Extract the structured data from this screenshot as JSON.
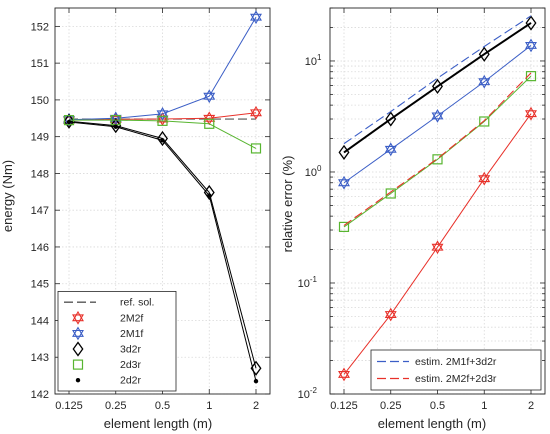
{
  "chart_data": [
    {
      "type": "line",
      "xscale": "log2",
      "x": [
        0.125,
        0.25,
        0.5,
        1,
        2
      ],
      "xticks": [
        "0.125",
        "0.25",
        "0.5",
        "1",
        "2"
      ],
      "xlabel": "element length (m)",
      "ylabel": "energy (Nm)",
      "ylim": [
        142,
        152.5
      ],
      "yticks": [
        "142",
        "143",
        "144",
        "145",
        "146",
        "147",
        "148",
        "149",
        "150",
        "151",
        "152"
      ],
      "grid": true,
      "legend_position": "bottom-left",
      "series": [
        {
          "name": "ref. sol.",
          "values": [
            149.48,
            149.48,
            149.48,
            149.48,
            149.48
          ],
          "color": "#555555",
          "style": "dashed",
          "marker": "none"
        },
        {
          "name": "2M2f",
          "values": [
            149.45,
            149.47,
            149.48,
            149.5,
            149.65
          ],
          "color": "#e8312a",
          "marker": "hexagram"
        },
        {
          "name": "2M1f",
          "values": [
            149.46,
            149.5,
            149.62,
            150.1,
            152.25
          ],
          "color": "#3b5ec6",
          "marker": "hexagram"
        },
        {
          "name": "3d2r",
          "values": [
            149.42,
            149.3,
            148.95,
            147.48,
            142.7
          ],
          "color": "#000000",
          "marker": "diamond"
        },
        {
          "name": "2d3r",
          "values": [
            149.45,
            149.45,
            149.43,
            149.35,
            148.68
          ],
          "color": "#58b530",
          "marker": "square"
        },
        {
          "name": "2d2r",
          "values": [
            149.4,
            149.27,
            148.9,
            147.4,
            142.35
          ],
          "color": "#000000",
          "marker": "dot"
        }
      ]
    },
    {
      "type": "line",
      "xscale": "log2",
      "yscale": "log",
      "x": [
        0.125,
        0.25,
        0.5,
        1,
        2
      ],
      "xticks": [
        "0.125",
        "0.25",
        "0.5",
        "1",
        "2"
      ],
      "xlabel": "element length (m)",
      "ylabel": "relative error (%)",
      "ylim": [
        0.01,
        30
      ],
      "yticks": [
        {
          "base": "10",
          "exp": "-2",
          "value": 0.01
        },
        {
          "base": "10",
          "exp": "-1",
          "value": 0.1
        },
        {
          "base": "10",
          "exp": "0",
          "value": 1
        },
        {
          "base": "10",
          "exp": "1",
          "value": 10
        }
      ],
      "grid": true,
      "legend_position": "bottom-right",
      "series": [
        {
          "name": "",
          "values": [
            0.015,
            0.052,
            0.21,
            0.87,
            3.35
          ],
          "color": "#e8312a",
          "marker": "hexagram"
        },
        {
          "name": "",
          "values": [
            0.8,
            1.6,
            3.2,
            6.5,
            13.8
          ],
          "color": "#3b5ec6",
          "marker": "hexagram"
        },
        {
          "name": "",
          "values": [
            1.5,
            3.0,
            5.9,
            11.5,
            22.0
          ],
          "color": "#000000",
          "marker": "diamond",
          "width": 2
        },
        {
          "name": "",
          "values": [
            0.32,
            0.64,
            1.3,
            2.85,
            7.3
          ],
          "color": "#58b530",
          "marker": "square"
        },
        {
          "name": "estim. 2M1f+3d2r",
          "values": [
            1.8,
            3.5,
            7.0,
            13.5,
            25.5
          ],
          "color": "#3b5ec6",
          "style": "dashed",
          "marker": "none"
        },
        {
          "name": "estim. 2M2f+2d3r",
          "values": [
            0.33,
            0.66,
            1.32,
            2.9,
            7.8
          ],
          "color": "#e8312a",
          "style": "dashed",
          "marker": "none"
        }
      ],
      "legend_series": [
        4,
        5
      ]
    }
  ]
}
